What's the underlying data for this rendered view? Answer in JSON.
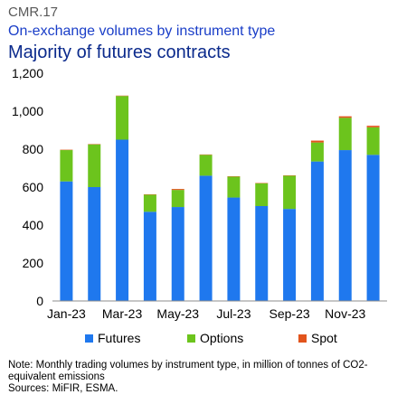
{
  "header": {
    "code": "CMR.17",
    "subtitle": "On-exchange volumes by instrument type",
    "title": "Majority of futures contracts"
  },
  "colors": {
    "futures": "#1f78ee",
    "options": "#6cc41d",
    "spot": "#e2541c",
    "axis": "#8c8c8c"
  },
  "chart_data": {
    "type": "bar",
    "stacked": true,
    "categories": [
      "Jan-23",
      "Feb-23",
      "Mar-23",
      "Apr-23",
      "May-23",
      "Jun-23",
      "Jul-23",
      "Aug-23",
      "Sep-23",
      "Oct-23",
      "Nov-23",
      "Dec-23"
    ],
    "x_tick_labels": [
      "Jan-23",
      "",
      "Mar-23",
      "",
      "May-23",
      "",
      "Jul-23",
      "",
      "Sep-23",
      "",
      "Nov-23",
      ""
    ],
    "series": [
      {
        "name": "Futures",
        "values": [
          630,
          600,
          850,
          470,
          495,
          660,
          545,
          500,
          485,
          735,
          795,
          770
        ]
      },
      {
        "name": "Options",
        "values": [
          165,
          225,
          230,
          90,
          90,
          110,
          110,
          120,
          175,
          100,
          170,
          145
        ]
      },
      {
        "name": "Spot",
        "values": [
          2,
          2,
          2,
          2,
          5,
          2,
          2,
          2,
          2,
          10,
          8,
          8
        ]
      }
    ],
    "ylim": [
      0,
      1200
    ],
    "y_ticks": [
      0,
      200,
      400,
      600,
      800,
      1000,
      1200
    ],
    "y_tick_labels": [
      "0",
      "200",
      "400",
      "600",
      "800",
      "1,000",
      "1,200"
    ],
    "grid": false,
    "legend_position": "bottom"
  },
  "footer": {
    "note": "Note: Monthly trading volumes by instrument type, in million of tonnes of CO2-equivalent emissions",
    "sources": "Sources: MiFIR, ESMA."
  }
}
